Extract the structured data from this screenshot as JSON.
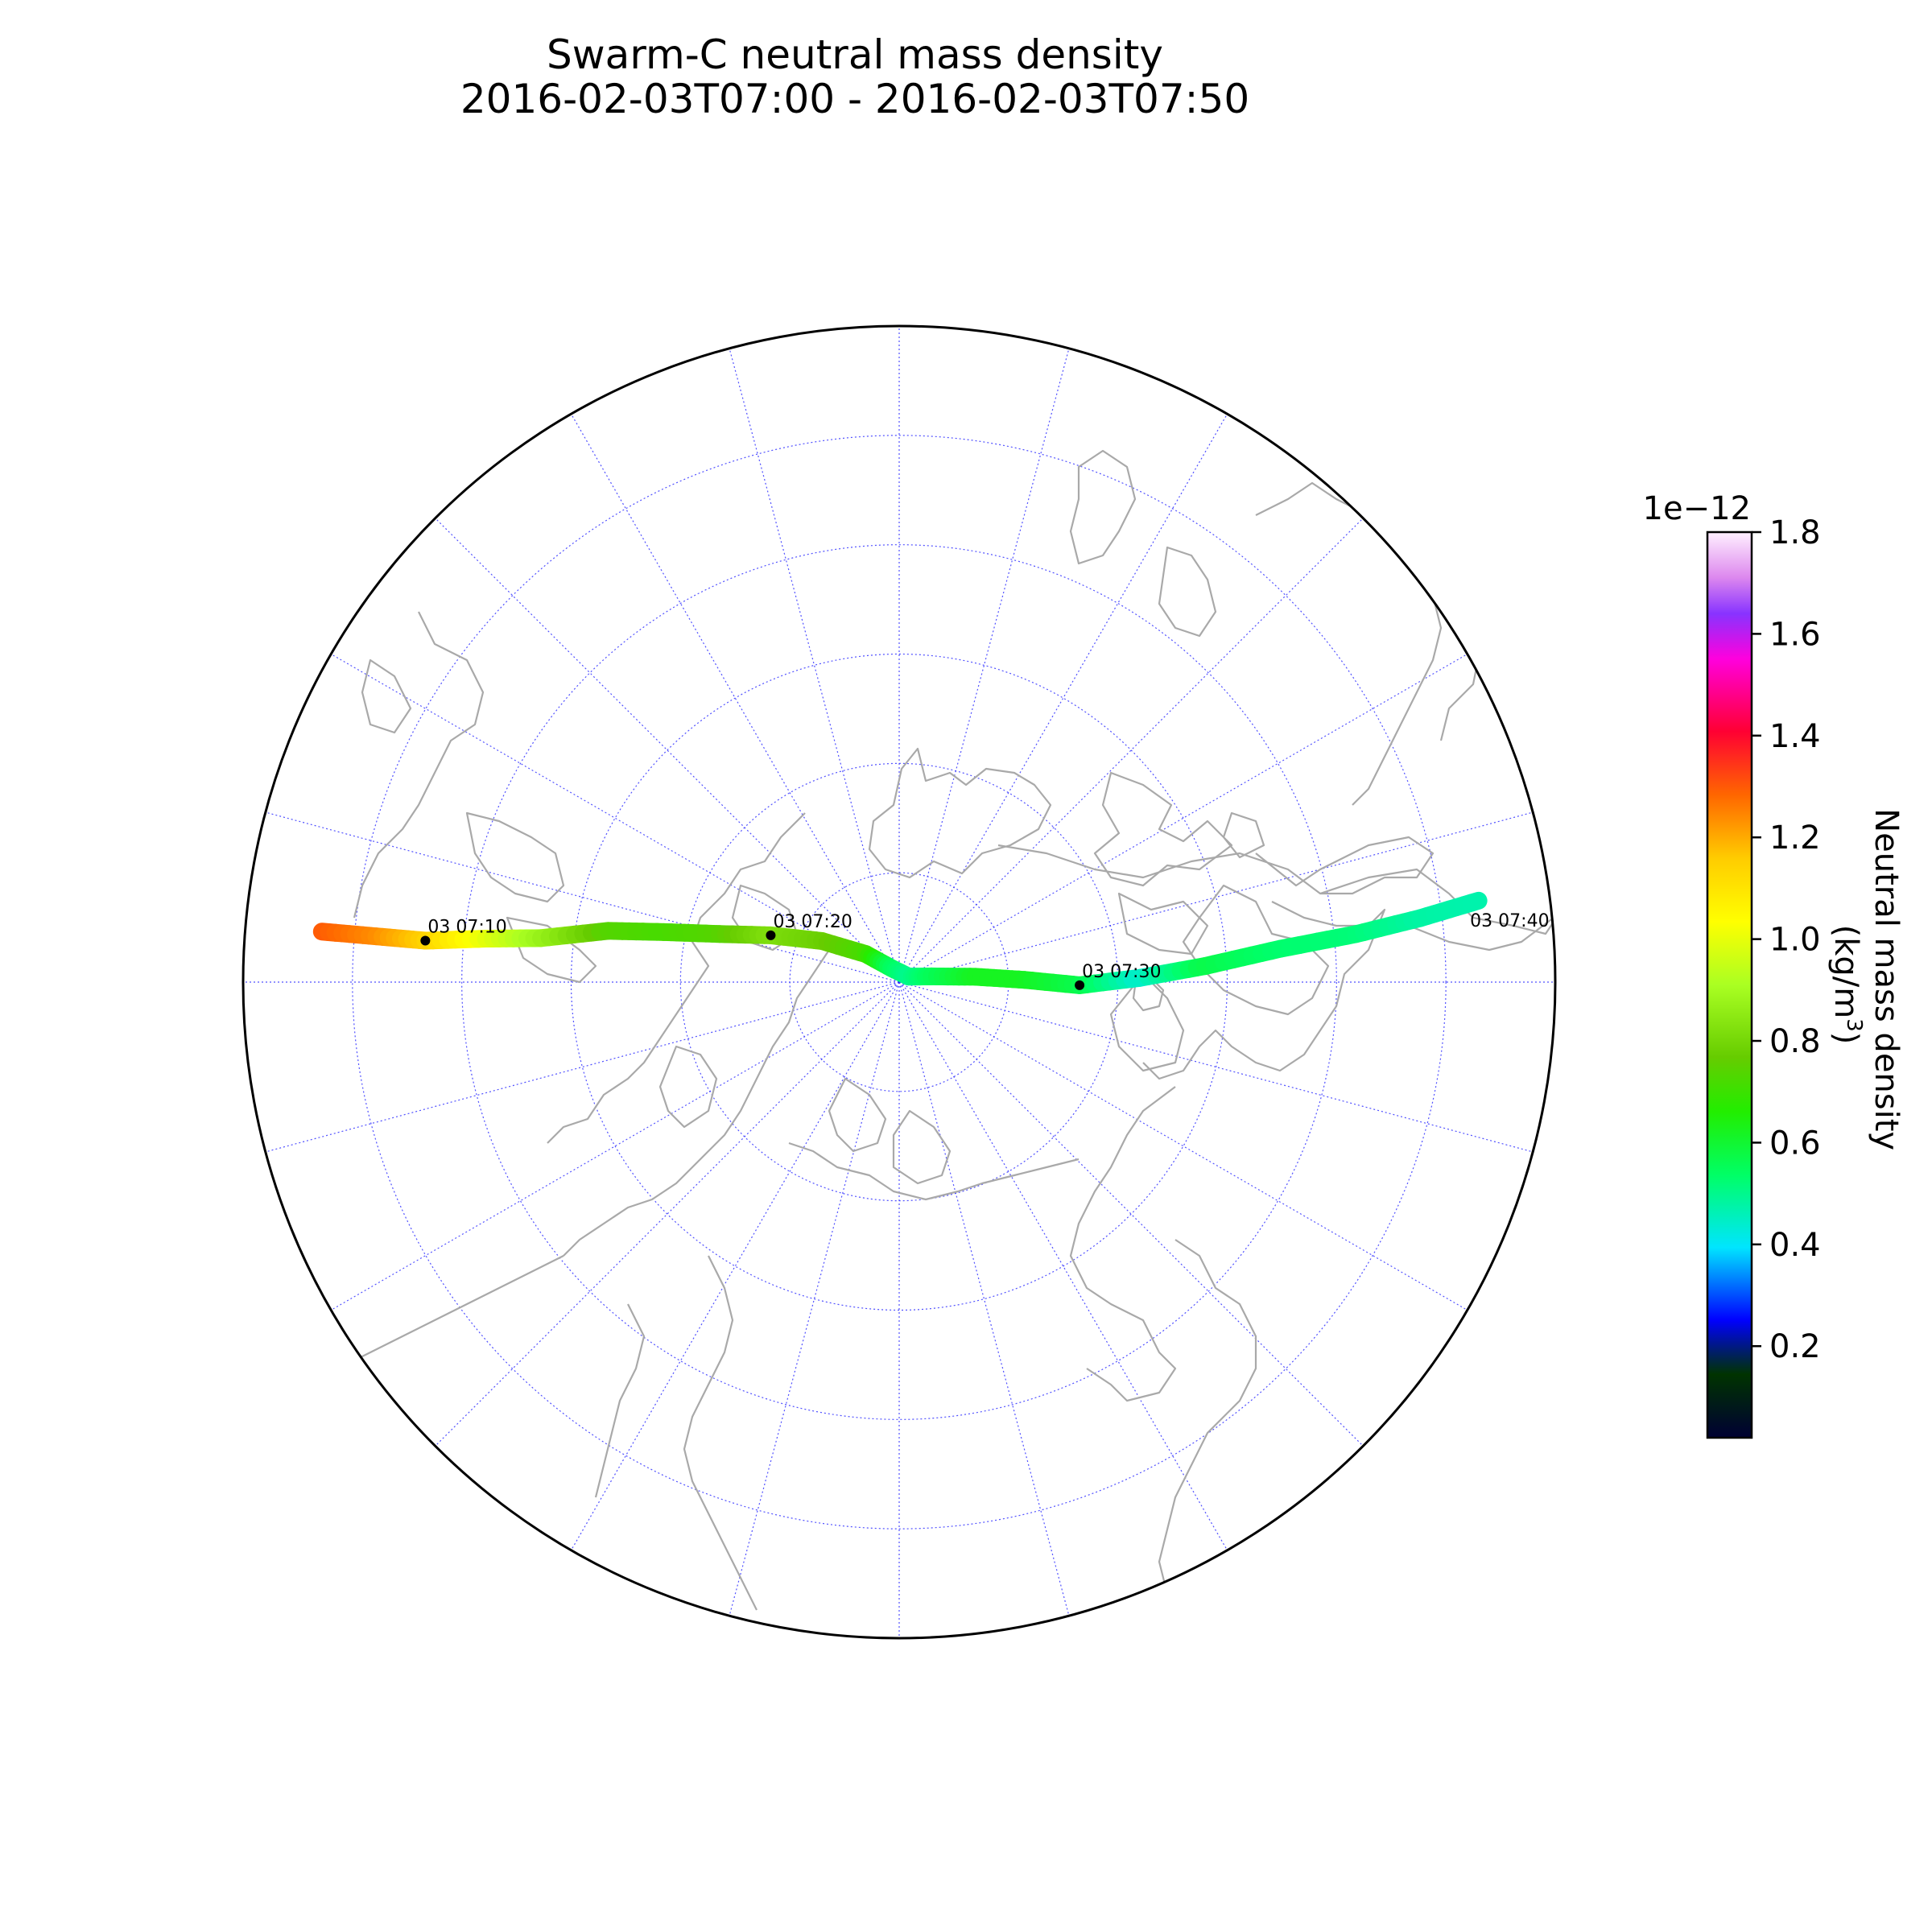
{
  "title": {
    "line1": "Swarm-C neutral mass density",
    "line2": "2016-02-03T07:00 - 2016-02-03T07:50"
  },
  "map": {
    "projection": "north-polar-stereographic",
    "graticule_color": "#3333ff",
    "coastline_color": "#a9a9a9",
    "meridian_count": 24,
    "parallels_deg": [
      80,
      70,
      60,
      50,
      40,
      30
    ]
  },
  "track": {
    "time_markers": [
      {
        "label": "03 07:10",
        "lat": 46.5,
        "lon": -85,
        "dot": true
      },
      {
        "label": "03 07:20",
        "lat": 77.5,
        "lon": -70,
        "dot": true
      },
      {
        "label": "03 07:30",
        "lat": 73.5,
        "lon": 91,
        "dot": true
      },
      {
        "label": "03 07:40",
        "lat": 37.5,
        "lon": 82,
        "dot": false
      }
    ],
    "density_profile": [
      {
        "lat": 37.0,
        "lon": -85,
        "density": 1.3
      },
      {
        "lat": 42.0,
        "lon": -85,
        "density": 1.24
      },
      {
        "lat": 46.5,
        "lon": -85,
        "density": 1.15
      },
      {
        "lat": 52.0,
        "lon": -84,
        "density": 1.0
      },
      {
        "lat": 57.0,
        "lon": -83,
        "density": 0.88
      },
      {
        "lat": 63.0,
        "lon": -80,
        "density": 0.74
      },
      {
        "lat": 68.0,
        "lon": -78,
        "density": 0.72
      },
      {
        "lat": 73.0,
        "lon": -75,
        "density": 0.74
      },
      {
        "lat": 77.5,
        "lon": -70,
        "density": 0.82
      },
      {
        "lat": 82.0,
        "lon": -62,
        "density": 0.78
      },
      {
        "lat": 86.0,
        "lon": -50,
        "density": 0.72
      },
      {
        "lat": 88.5,
        "lon": -30,
        "density": 0.55
      },
      {
        "lat": 89.0,
        "lon": 60,
        "density": 0.5
      },
      {
        "lat": 87.0,
        "lon": 80,
        "density": 0.55
      },
      {
        "lat": 83.0,
        "lon": 86,
        "density": 0.62
      },
      {
        "lat": 78.5,
        "lon": 89,
        "density": 0.62
      },
      {
        "lat": 73.5,
        "lon": 91,
        "density": 0.57
      },
      {
        "lat": 68.0,
        "lon": 89,
        "density": 0.44
      },
      {
        "lat": 62.0,
        "lon": 87,
        "density": 0.57
      },
      {
        "lat": 55.0,
        "lon": 85,
        "density": 0.53
      },
      {
        "lat": 48.0,
        "lon": 84,
        "density": 0.52
      },
      {
        "lat": 42.0,
        "lon": 83,
        "density": 0.48
      },
      {
        "lat": 36.5,
        "lon": 82,
        "density": 0.47
      }
    ]
  },
  "colorbar": {
    "multiplier": "1e−12",
    "min": 0.02,
    "max": 1.8,
    "ticks": [
      "0.2",
      "0.4",
      "0.6",
      "0.8",
      "1.0",
      "1.2",
      "1.4",
      "1.6",
      "1.8"
    ],
    "tick_values": [
      0.2,
      0.4,
      0.6,
      0.8,
      1.0,
      1.2,
      1.4,
      1.6,
      1.8
    ],
    "label_line1": "Neutral mass density",
    "label_line2_prefix": "(kg/m",
    "label_line2_sup": "3",
    "label_line2_suffix": ")",
    "colormap_stops": [
      {
        "v": 0.0,
        "color": "#000033"
      },
      {
        "v": 0.07,
        "color": "#003300"
      },
      {
        "v": 0.13,
        "color": "#0000ff"
      },
      {
        "v": 0.21,
        "color": "#00e5ff"
      },
      {
        "v": 0.29,
        "color": "#00ff66"
      },
      {
        "v": 0.36,
        "color": "#22ee00"
      },
      {
        "v": 0.42,
        "color": "#66cc00"
      },
      {
        "v": 0.5,
        "color": "#aaff22"
      },
      {
        "v": 0.57,
        "color": "#ffff00"
      },
      {
        "v": 0.64,
        "color": "#ffcc00"
      },
      {
        "v": 0.71,
        "color": "#ff6600"
      },
      {
        "v": 0.78,
        "color": "#ff0033"
      },
      {
        "v": 0.82,
        "color": "#ff0088"
      },
      {
        "v": 0.86,
        "color": "#ff00dd"
      },
      {
        "v": 0.91,
        "color": "#8833ff"
      },
      {
        "v": 0.95,
        "color": "#dd88ee"
      },
      {
        "v": 1.0,
        "color": "#fff0ff"
      }
    ]
  }
}
